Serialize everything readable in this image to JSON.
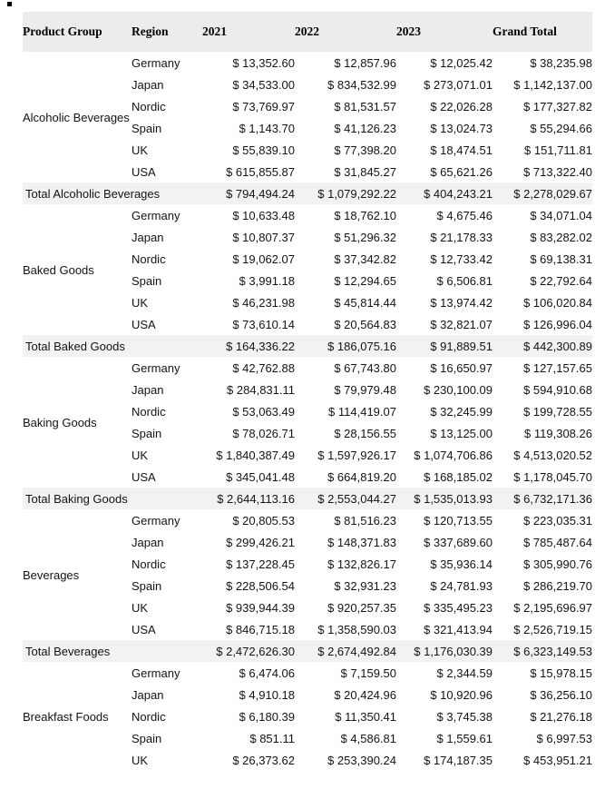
{
  "colors": {
    "header_bg": "#ececec",
    "index_column_bg": "#ececec",
    "total_row_bg": "#f2f2f2",
    "body_bg": "#ffffff",
    "text": "#131313"
  },
  "table": {
    "columns": [
      "Product Group",
      "Region",
      "2021",
      "2022",
      "2023",
      "Grand Total"
    ],
    "groups": [
      {
        "name": "Alcoholic Beverages",
        "rows": [
          {
            "region": "Germany",
            "y2021": "$ 13,352.60",
            "y2022": "$ 12,857.96",
            "y2023": "$ 12,025.42",
            "grand_total": "$ 38,235.98"
          },
          {
            "region": "Japan",
            "y2021": "$ 34,533.00",
            "y2022": "$ 834,532.99",
            "y2023": "$ 273,071.01",
            "grand_total": "$ 1,142,137.00"
          },
          {
            "region": "Nordic",
            "y2021": "$ 73,769.97",
            "y2022": "$ 81,531.57",
            "y2023": "$ 22,026.28",
            "grand_total": "$ 177,327.82"
          },
          {
            "region": "Spain",
            "y2021": "$ 1,143.70",
            "y2022": "$ 41,126.23",
            "y2023": "$ 13,024.73",
            "grand_total": "$ 55,294.66"
          },
          {
            "region": "UK",
            "y2021": "$ 55,839.10",
            "y2022": "$ 77,398.20",
            "y2023": "$ 18,474.51",
            "grand_total": "$ 151,711.81"
          },
          {
            "region": "USA",
            "y2021": "$ 615,855.87",
            "y2022": "$ 31,845.27",
            "y2023": "$ 65,621.26",
            "grand_total": "$ 713,322.40"
          }
        ],
        "total": {
          "label": "Total Alcoholic Beverages",
          "y2021": "$ 794,494.24",
          "y2022": "$ 1,079,292.22",
          "y2023": "$ 404,243.21",
          "grand_total": "$ 2,278,029.67"
        }
      },
      {
        "name": "Baked Goods",
        "rows": [
          {
            "region": "Germany",
            "y2021": "$ 10,633.48",
            "y2022": "$ 18,762.10",
            "y2023": "$ 4,675.46",
            "grand_total": "$ 34,071.04"
          },
          {
            "region": "Japan",
            "y2021": "$ 10,807.37",
            "y2022": "$ 51,296.32",
            "y2023": "$ 21,178.33",
            "grand_total": "$ 83,282.02"
          },
          {
            "region": "Nordic",
            "y2021": "$ 19,062.07",
            "y2022": "$ 37,342.82",
            "y2023": "$ 12,733.42",
            "grand_total": "$ 69,138.31"
          },
          {
            "region": "Spain",
            "y2021": "$ 3,991.18",
            "y2022": "$ 12,294.65",
            "y2023": "$ 6,506.81",
            "grand_total": "$ 22,792.64"
          },
          {
            "region": "UK",
            "y2021": "$ 46,231.98",
            "y2022": "$ 45,814.44",
            "y2023": "$ 13,974.42",
            "grand_total": "$ 106,020.84"
          },
          {
            "region": "USA",
            "y2021": "$ 73,610.14",
            "y2022": "$ 20,564.83",
            "y2023": "$ 32,821.07",
            "grand_total": "$ 126,996.04"
          }
        ],
        "total": {
          "label": "Total Baked Goods",
          "y2021": "$ 164,336.22",
          "y2022": "$ 186,075.16",
          "y2023": "$ 91,889.51",
          "grand_total": "$ 442,300.89"
        }
      },
      {
        "name": "Baking Goods",
        "rows": [
          {
            "region": "Germany",
            "y2021": "$ 42,762.88",
            "y2022": "$ 67,743.80",
            "y2023": "$ 16,650.97",
            "grand_total": "$ 127,157.65"
          },
          {
            "region": "Japan",
            "y2021": "$ 284,831.11",
            "y2022": "$ 79,979.48",
            "y2023": "$ 230,100.09",
            "grand_total": "$ 594,910.68"
          },
          {
            "region": "Nordic",
            "y2021": "$ 53,063.49",
            "y2022": "$ 114,419.07",
            "y2023": "$ 32,245.99",
            "grand_total": "$ 199,728.55"
          },
          {
            "region": "Spain",
            "y2021": "$ 78,026.71",
            "y2022": "$ 28,156.55",
            "y2023": "$ 13,125.00",
            "grand_total": "$ 119,308.26"
          },
          {
            "region": "UK",
            "y2021": "$ 1,840,387.49",
            "y2022": "$ 1,597,926.17",
            "y2023": "$ 1,074,706.86",
            "grand_total": "$ 4,513,020.52"
          },
          {
            "region": "USA",
            "y2021": "$ 345,041.48",
            "y2022": "$ 664,819.20",
            "y2023": "$ 168,185.02",
            "grand_total": "$ 1,178,045.70"
          }
        ],
        "total": {
          "label": "Total Baking Goods",
          "y2021": "$ 2,644,113.16",
          "y2022": "$ 2,553,044.27",
          "y2023": "$ 1,535,013.93",
          "grand_total": "$ 6,732,171.36"
        }
      },
      {
        "name": "Beverages",
        "rows": [
          {
            "region": "Germany",
            "y2021": "$ 20,805.53",
            "y2022": "$ 81,516.23",
            "y2023": "$ 120,713.55",
            "grand_total": "$ 223,035.31"
          },
          {
            "region": "Japan",
            "y2021": "$ 299,426.21",
            "y2022": "$ 148,371.83",
            "y2023": "$ 337,689.60",
            "grand_total": "$ 785,487.64"
          },
          {
            "region": "Nordic",
            "y2021": "$ 137,228.45",
            "y2022": "$ 132,826.17",
            "y2023": "$ 35,936.14",
            "grand_total": "$ 305,990.76"
          },
          {
            "region": "Spain",
            "y2021": "$ 228,506.54",
            "y2022": "$ 32,931.23",
            "y2023": "$ 24,781.93",
            "grand_total": "$ 286,219.70"
          },
          {
            "region": "UK",
            "y2021": "$ 939,944.39",
            "y2022": "$ 920,257.35",
            "y2023": "$ 335,495.23",
            "grand_total": "$ 2,195,696.97"
          },
          {
            "region": "USA",
            "y2021": "$ 846,715.18",
            "y2022": "$ 1,358,590.03",
            "y2023": "$ 321,413.94",
            "grand_total": "$ 2,526,719.15"
          }
        ],
        "total": {
          "label": "Total Beverages",
          "y2021": "$ 2,472,626.30",
          "y2022": "$ 2,674,492.84",
          "y2023": "$ 1,176,030.39",
          "grand_total": "$ 6,323,149.53"
        }
      },
      {
        "name": "Breakfast Foods",
        "rows": [
          {
            "region": "Germany",
            "y2021": "$ 6,474.06",
            "y2022": "$ 7,159.50",
            "y2023": "$ 2,344.59",
            "grand_total": "$ 15,978.15"
          },
          {
            "region": "Japan",
            "y2021": "$ 4,910.18",
            "y2022": "$ 20,424.96",
            "y2023": "$ 10,920.96",
            "grand_total": "$ 36,256.10"
          },
          {
            "region": "Nordic",
            "y2021": "$ 6,180.39",
            "y2022": "$ 11,350.41",
            "y2023": "$ 3,745.38",
            "grand_total": "$ 21,276.18"
          },
          {
            "region": "Spain",
            "y2021": "$ 851.11",
            "y2022": "$ 4,586.81",
            "y2023": "$ 1,559.61",
            "grand_total": "$ 6,997.53"
          },
          {
            "region": "UK",
            "y2021": "$ 26,373.62",
            "y2022": "$ 253,390.24",
            "y2023": "$ 174,187.35",
            "grand_total": "$ 453,951.21"
          }
        ],
        "total": null
      }
    ]
  }
}
